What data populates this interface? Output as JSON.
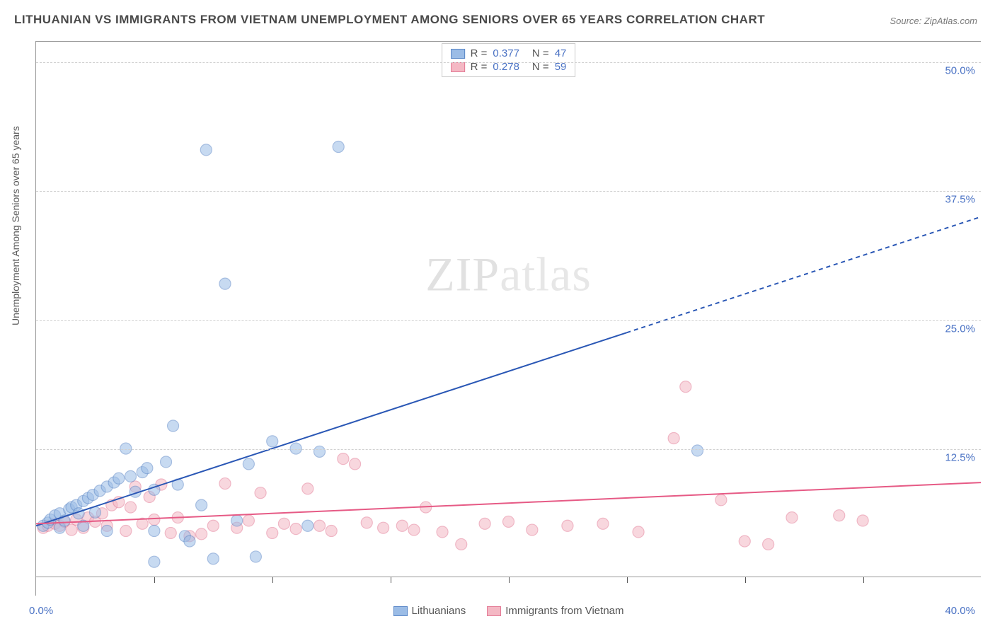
{
  "title": "LITHUANIAN VS IMMIGRANTS FROM VIETNAM UNEMPLOYMENT AMONG SENIORS OVER 65 YEARS CORRELATION CHART",
  "source": "Source: ZipAtlas.com",
  "ylabel": "Unemployment Among Seniors over 65 years",
  "watermark_a": "ZIP",
  "watermark_b": "atlas",
  "chart": {
    "type": "scatter",
    "background_color": "#ffffff",
    "grid_color": "#d0d0d0",
    "axis_color": "#999999",
    "tick_label_color": "#4a72c4",
    "xlim": [
      0,
      40
    ],
    "ylim": [
      0,
      52
    ],
    "x_start_label": "0.0%",
    "x_end_label": "40.0%",
    "yticks": [
      {
        "v": 12.5,
        "label": "12.5%"
      },
      {
        "v": 25.0,
        "label": "25.0%"
      },
      {
        "v": 37.5,
        "label": "37.5%"
      },
      {
        "v": 50.0,
        "label": "50.0%"
      }
    ],
    "xtick_positions": [
      5,
      10,
      15,
      20,
      25,
      30,
      35
    ],
    "marker_radius": 8,
    "marker_opacity": 0.55,
    "line_width": 2,
    "series": [
      {
        "name": "Lithuanians",
        "label": "Lithuanians",
        "fill_color": "#9bbce6",
        "stroke_color": "#5a87c7",
        "line_color": "#2a57b5",
        "R": "0.377",
        "N": "47",
        "trend": {
          "x1": 0,
          "y1": 5,
          "x2": 40,
          "y2": 35,
          "solid_until_x": 25
        },
        "points": [
          [
            0.3,
            5
          ],
          [
            0.5,
            5.3
          ],
          [
            0.6,
            5.6
          ],
          [
            0.8,
            6
          ],
          [
            1,
            4.8
          ],
          [
            1,
            6.2
          ],
          [
            1.2,
            5.5
          ],
          [
            1.4,
            6.6
          ],
          [
            1.5,
            6.8
          ],
          [
            1.7,
            7
          ],
          [
            1.8,
            6.2
          ],
          [
            2,
            7.4
          ],
          [
            2,
            5
          ],
          [
            2.2,
            7.7
          ],
          [
            2.4,
            8
          ],
          [
            2.5,
            6.3
          ],
          [
            2.7,
            8.4
          ],
          [
            3,
            8.8
          ],
          [
            3,
            4.5
          ],
          [
            3.3,
            9.2
          ],
          [
            3.5,
            9.6
          ],
          [
            3.8,
            12.5
          ],
          [
            4,
            9.8
          ],
          [
            4.2,
            8.3
          ],
          [
            4.5,
            10.2
          ],
          [
            4.7,
            10.6
          ],
          [
            5,
            4.5
          ],
          [
            5,
            8.5
          ],
          [
            5,
            1.5
          ],
          [
            5.5,
            11.2
          ],
          [
            5.8,
            14.7
          ],
          [
            6,
            9
          ],
          [
            6.3,
            4
          ],
          [
            6.5,
            3.5
          ],
          [
            7,
            7
          ],
          [
            7.2,
            41.5
          ],
          [
            7.5,
            1.8
          ],
          [
            8,
            28.5
          ],
          [
            8.5,
            5.5
          ],
          [
            9,
            11
          ],
          [
            9.3,
            2
          ],
          [
            10,
            13.2
          ],
          [
            11,
            12.5
          ],
          [
            11.5,
            5
          ],
          [
            12,
            12.2
          ],
          [
            12.8,
            41.8
          ],
          [
            28,
            12.3
          ]
        ]
      },
      {
        "name": "Immigrants from Vietnam",
        "label": "Immigrants from Vietnam",
        "fill_color": "#f4b8c4",
        "stroke_color": "#e37a95",
        "line_color": "#e65a85",
        "R": "0.278",
        "N": "59",
        "trend": {
          "x1": 0,
          "y1": 5.2,
          "x2": 40,
          "y2": 9.2,
          "solid_until_x": 40
        },
        "points": [
          [
            0.3,
            4.8
          ],
          [
            0.5,
            5
          ],
          [
            0.8,
            5.2
          ],
          [
            1,
            5
          ],
          [
            1.2,
            5.4
          ],
          [
            1.5,
            4.6
          ],
          [
            1.7,
            5.6
          ],
          [
            2,
            4.8
          ],
          [
            2.2,
            5.8
          ],
          [
            2.5,
            5.4
          ],
          [
            2.8,
            6.2
          ],
          [
            3,
            5
          ],
          [
            3.2,
            7
          ],
          [
            3.5,
            7.3
          ],
          [
            3.8,
            4.5
          ],
          [
            4,
            6.8
          ],
          [
            4.2,
            8.8
          ],
          [
            4.5,
            5.2
          ],
          [
            4.8,
            7.8
          ],
          [
            5,
            5.6
          ],
          [
            5.3,
            9
          ],
          [
            5.7,
            4.3
          ],
          [
            6,
            5.8
          ],
          [
            6.5,
            4
          ],
          [
            7,
            4.2
          ],
          [
            7.5,
            5
          ],
          [
            8,
            9.1
          ],
          [
            8.5,
            4.8
          ],
          [
            9,
            5.5
          ],
          [
            9.5,
            8.2
          ],
          [
            10,
            4.3
          ],
          [
            10.5,
            5.2
          ],
          [
            11,
            4.7
          ],
          [
            11.5,
            8.6
          ],
          [
            12,
            5
          ],
          [
            12.5,
            4.5
          ],
          [
            13,
            11.5
          ],
          [
            13.5,
            11
          ],
          [
            14,
            5.3
          ],
          [
            14.7,
            4.8
          ],
          [
            15.5,
            5
          ],
          [
            16,
            4.6
          ],
          [
            16.5,
            6.8
          ],
          [
            17.2,
            4.4
          ],
          [
            18,
            3.2
          ],
          [
            19,
            5.2
          ],
          [
            20,
            5.4
          ],
          [
            21,
            4.6
          ],
          [
            22.5,
            5
          ],
          [
            24,
            5.2
          ],
          [
            25.5,
            4.4
          ],
          [
            27,
            13.5
          ],
          [
            27.5,
            18.5
          ],
          [
            29,
            7.5
          ],
          [
            30,
            3.5
          ],
          [
            31,
            3.2
          ],
          [
            32,
            5.8
          ],
          [
            34,
            6
          ],
          [
            35,
            5.5
          ]
        ]
      }
    ]
  },
  "legend_stats": {
    "r_label": "R =",
    "n_label": "N ="
  }
}
